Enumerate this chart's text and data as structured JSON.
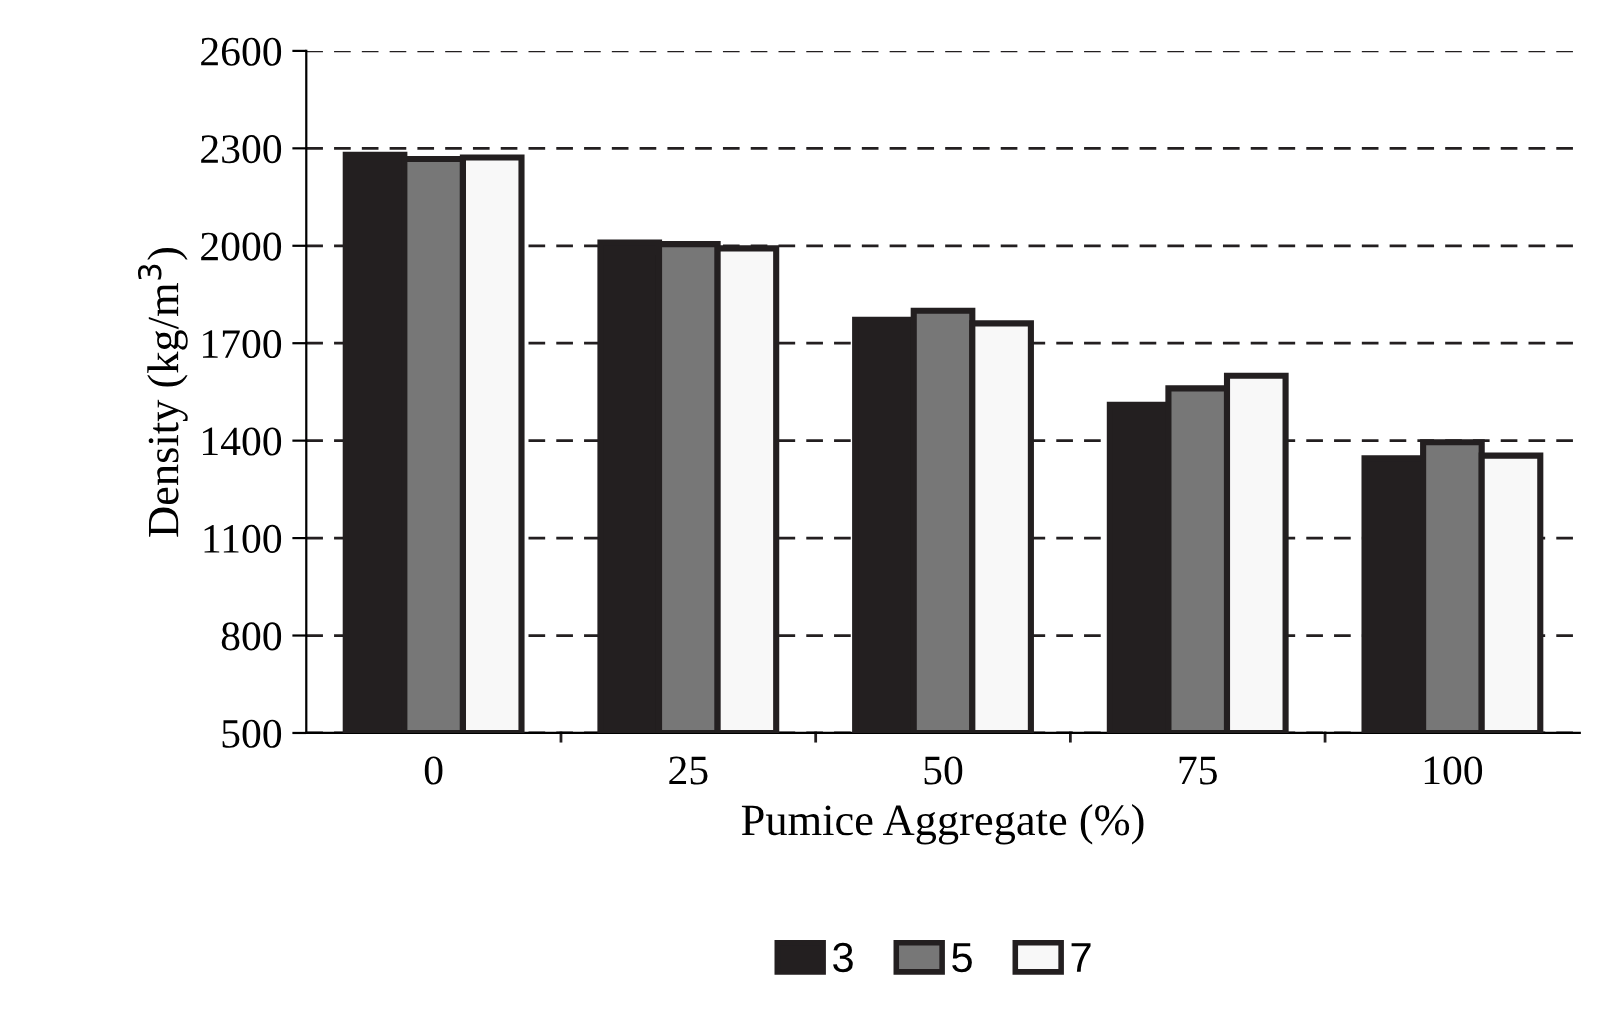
{
  "chart_data": {
    "type": "bar",
    "xlabel": "Pumice Aggregate (%)",
    "ylabel": "Density (kg/m$^{3}$)",
    "categories": [
      "0",
      "25",
      "50",
      "75",
      "100"
    ],
    "series": [
      {
        "name": "3",
        "color": "#231f20",
        "values": [
          2280,
          2010,
          1772,
          1510,
          1346
        ]
      },
      {
        "name": "5",
        "color": "#777777",
        "values": [
          2267,
          2005,
          1800,
          1561,
          1395
        ]
      },
      {
        "name": "7",
        "color": "#f8f8f8",
        "values": [
          2272,
          1992,
          1761,
          1600,
          1354
        ]
      }
    ],
    "ylim": [
      500,
      2600
    ],
    "yticks": [
      500,
      800,
      1100,
      1400,
      1700,
      2000,
      2300,
      2600
    ],
    "grid": "y",
    "legend": "bottom"
  }
}
